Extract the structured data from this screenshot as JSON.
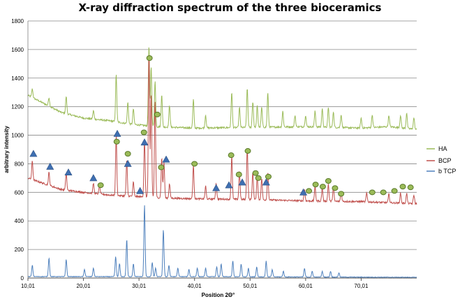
{
  "chart_data": {
    "type": "line",
    "title": "X-ray diffraction spectrum of the three bioceramics",
    "xlabel": "Position 2Θ°",
    "ylabel": "arbitrary intensity",
    "xlim": [
      10.01,
      80.01
    ],
    "ylim": [
      0,
      1800
    ],
    "x_ticks": [
      "10,01",
      "20,01",
      "30,01",
      "40,01",
      "50,01",
      "60,01",
      "70,01"
    ],
    "x_tick_values": [
      10.01,
      20.01,
      30.01,
      40.01,
      50.01,
      60.01,
      70.01
    ],
    "y_ticks": [
      0,
      200,
      400,
      600,
      800,
      1000,
      1200,
      1400,
      1600,
      1800
    ],
    "grid": "horizontal",
    "legend_position": "right",
    "series": [
      {
        "name": "HA",
        "color": "#9bbb59",
        "baseline": [
          [
            10.01,
            1280
          ],
          [
            13,
            1220
          ],
          [
            16,
            1160
          ],
          [
            20,
            1120
          ],
          [
            25,
            1100
          ],
          [
            28,
            1080
          ],
          [
            33,
            1060
          ],
          [
            40,
            1050
          ],
          [
            50,
            1055
          ],
          [
            60,
            1060
          ],
          [
            70,
            1050
          ],
          [
            75,
            1060
          ],
          [
            80,
            1040
          ]
        ],
        "peaks": [
          [
            10.8,
            60
          ],
          [
            13.8,
            60
          ],
          [
            16.9,
            120
          ],
          [
            21.8,
            60
          ],
          [
            25.9,
            330
          ],
          [
            28.0,
            150
          ],
          [
            29.0,
            110
          ],
          [
            31.8,
            560
          ],
          [
            32.2,
            420
          ],
          [
            32.9,
            320
          ],
          [
            34.1,
            230
          ],
          [
            35.5,
            150
          ],
          [
            39.8,
            200
          ],
          [
            42.0,
            90
          ],
          [
            46.7,
            250
          ],
          [
            48.1,
            140
          ],
          [
            49.5,
            270
          ],
          [
            50.5,
            180
          ],
          [
            51.3,
            150
          ],
          [
            52.1,
            140
          ],
          [
            53.2,
            240
          ],
          [
            55.9,
            110
          ],
          [
            58.1,
            80
          ],
          [
            60.0,
            80
          ],
          [
            61.7,
            110
          ],
          [
            63.0,
            130
          ],
          [
            64.1,
            140
          ],
          [
            65.0,
            110
          ],
          [
            66.4,
            90
          ],
          [
            70.0,
            70
          ],
          [
            72.0,
            90
          ],
          [
            75.0,
            80
          ],
          [
            77.1,
            90
          ],
          [
            78.2,
            110
          ],
          [
            79.5,
            80
          ]
        ],
        "markers": []
      },
      {
        "name": "BCP",
        "color": "#c0504d",
        "baseline": [
          [
            10.01,
            700
          ],
          [
            13,
            660
          ],
          [
            16,
            620
          ],
          [
            20,
            600
          ],
          [
            25,
            580
          ],
          [
            30,
            570
          ],
          [
            35,
            560
          ],
          [
            40,
            555
          ],
          [
            50,
            550
          ],
          [
            60,
            540
          ],
          [
            70,
            535
          ],
          [
            80,
            520
          ]
        ],
        "peaks": [
          [
            10.8,
            130
          ],
          [
            13.8,
            90
          ],
          [
            16.9,
            120
          ],
          [
            21.8,
            70
          ],
          [
            22.9,
            60
          ],
          [
            25.9,
            420
          ],
          [
            27.8,
            250
          ],
          [
            29.0,
            100
          ],
          [
            31.0,
            400
          ],
          [
            31.8,
            1020
          ],
          [
            32.2,
            720
          ],
          [
            32.9,
            680
          ],
          [
            34.1,
            280
          ],
          [
            34.5,
            250
          ],
          [
            35.5,
            100
          ],
          [
            39.8,
            230
          ],
          [
            42.0,
            90
          ],
          [
            43.9,
            110
          ],
          [
            46.7,
            300
          ],
          [
            48.1,
            200
          ],
          [
            49.5,
            360
          ],
          [
            50.5,
            190
          ],
          [
            51.3,
            170
          ],
          [
            52.1,
            150
          ],
          [
            53.2,
            190
          ],
          [
            59.8,
            80
          ],
          [
            61.7,
            100
          ],
          [
            63.0,
            90
          ],
          [
            64.1,
            120
          ],
          [
            65.0,
            100
          ],
          [
            66.4,
            60
          ],
          [
            71.0,
            60
          ],
          [
            75.0,
            60
          ],
          [
            77.1,
            70
          ],
          [
            78.2,
            70
          ],
          [
            79.5,
            60
          ]
        ],
        "markers": [
          {
            "shape": "triangle",
            "x": 11.0,
            "y": 870
          },
          {
            "shape": "triangle",
            "x": 14.0,
            "y": 780
          },
          {
            "shape": "triangle",
            "x": 17.3,
            "y": 740
          },
          {
            "shape": "triangle",
            "x": 21.8,
            "y": 700
          },
          {
            "shape": "circle",
            "x": 23.1,
            "y": 650
          },
          {
            "shape": "triangle",
            "x": 26.1,
            "y": 1010
          },
          {
            "shape": "circle",
            "x": 26.0,
            "y": 955
          },
          {
            "shape": "circle",
            "x": 28.0,
            "y": 870
          },
          {
            "shape": "triangle",
            "x": 28.0,
            "y": 800
          },
          {
            "shape": "triangle",
            "x": 30.2,
            "y": 610
          },
          {
            "shape": "circle",
            "x": 30.9,
            "y": 1020
          },
          {
            "shape": "triangle",
            "x": 31.0,
            "y": 950
          },
          {
            "shape": "circle",
            "x": 31.9,
            "y": 1540
          },
          {
            "shape": "circle",
            "x": 33.3,
            "y": 1145
          },
          {
            "shape": "circle",
            "x": 34.0,
            "y": 775
          },
          {
            "shape": "triangle",
            "x": 34.9,
            "y": 830
          },
          {
            "shape": "circle",
            "x": 40.0,
            "y": 800
          },
          {
            "shape": "triangle",
            "x": 43.9,
            "y": 630
          },
          {
            "shape": "triangle",
            "x": 46.2,
            "y": 650
          },
          {
            "shape": "circle",
            "x": 46.6,
            "y": 860
          },
          {
            "shape": "circle",
            "x": 48.0,
            "y": 725
          },
          {
            "shape": "triangle",
            "x": 48.6,
            "y": 670
          },
          {
            "shape": "circle",
            "x": 49.6,
            "y": 890
          },
          {
            "shape": "circle",
            "x": 51.0,
            "y": 735
          },
          {
            "shape": "circle",
            "x": 51.5,
            "y": 700
          },
          {
            "shape": "triangle",
            "x": 52.9,
            "y": 670
          },
          {
            "shape": "circle",
            "x": 53.3,
            "y": 710
          },
          {
            "shape": "triangle",
            "x": 59.6,
            "y": 600
          },
          {
            "shape": "circle",
            "x": 60.6,
            "y": 610
          },
          {
            "shape": "circle",
            "x": 61.8,
            "y": 655
          },
          {
            "shape": "circle",
            "x": 63.1,
            "y": 640
          },
          {
            "shape": "circle",
            "x": 64.1,
            "y": 680
          },
          {
            "shape": "circle",
            "x": 65.3,
            "y": 630
          },
          {
            "shape": "circle",
            "x": 66.4,
            "y": 590
          },
          {
            "shape": "circle",
            "x": 72.0,
            "y": 600
          },
          {
            "shape": "circle",
            "x": 74.0,
            "y": 600
          },
          {
            "shape": "circle",
            "x": 76.0,
            "y": 610
          },
          {
            "shape": "circle",
            "x": 77.5,
            "y": 640
          },
          {
            "shape": "circle",
            "x": 78.9,
            "y": 635
          }
        ]
      },
      {
        "name": "b TCP",
        "color": "#4f81bd",
        "baseline": [
          [
            10.01,
            10
          ],
          [
            40,
            10
          ],
          [
            80,
            5
          ]
        ],
        "peaks": [
          [
            10.8,
            80
          ],
          [
            13.8,
            130
          ],
          [
            16.9,
            120
          ],
          [
            20.2,
            50
          ],
          [
            21.8,
            60
          ],
          [
            25.8,
            140
          ],
          [
            26.5,
            90
          ],
          [
            27.8,
            260
          ],
          [
            29.0,
            90
          ],
          [
            31.0,
            500
          ],
          [
            32.4,
            100
          ],
          [
            33.0,
            60
          ],
          [
            34.4,
            330
          ],
          [
            35.4,
            80
          ],
          [
            37.0,
            60
          ],
          [
            39.0,
            50
          ],
          [
            40.5,
            60
          ],
          [
            42.0,
            60
          ],
          [
            44.0,
            70
          ],
          [
            44.8,
            90
          ],
          [
            46.9,
            110
          ],
          [
            48.4,
            90
          ],
          [
            49.7,
            60
          ],
          [
            51.2,
            70
          ],
          [
            52.9,
            110
          ],
          [
            54.0,
            50
          ],
          [
            56.0,
            40
          ],
          [
            59.8,
            60
          ],
          [
            61.2,
            40
          ],
          [
            63.0,
            40
          ],
          [
            64.5,
            40
          ],
          [
            66.0,
            30
          ]
        ],
        "markers": []
      }
    ]
  }
}
